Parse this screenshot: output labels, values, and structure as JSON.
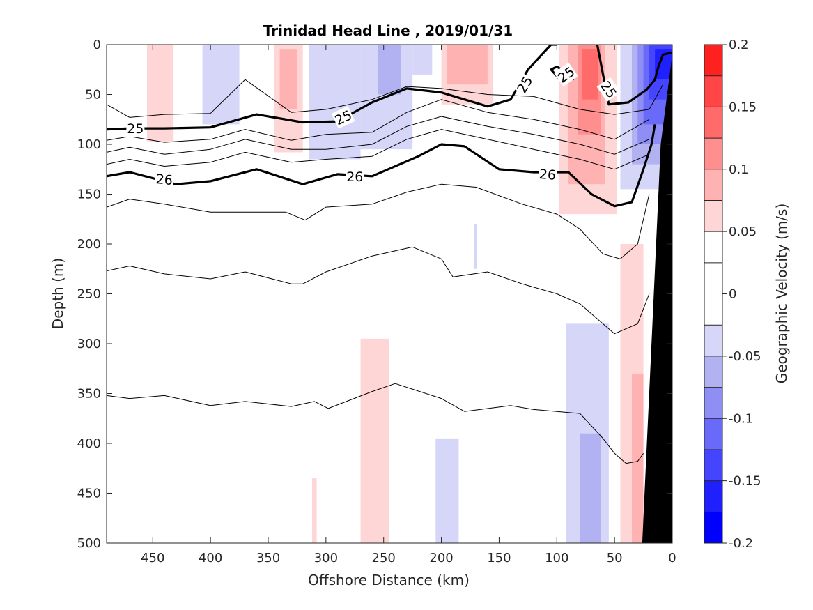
{
  "chart_data": {
    "type": "contour",
    "title": "Trinidad Head Line , 2019/01/31",
    "xlabel": "Offshore Distance (km)",
    "ylabel": "Depth (m)",
    "xlim": [
      490,
      0
    ],
    "ylim": [
      0,
      500
    ],
    "x_reversed": true,
    "y_reversed": true,
    "x_ticks": [
      450,
      400,
      350,
      300,
      250,
      200,
      150,
      100,
      50,
      0
    ],
    "y_ticks": [
      0,
      50,
      100,
      150,
      200,
      250,
      300,
      350,
      400,
      450,
      500
    ],
    "colorbar": {
      "label": "Geographic Velocity (m/s)",
      "range": [
        -0.2,
        0.2
      ],
      "tick_values": [
        0.2,
        0.15,
        0.1,
        0.05,
        0,
        -0.05,
        -0.1,
        -0.15,
        -0.2
      ],
      "tick_labels": [
        "0.2",
        "0.15",
        "0.1",
        "0.05",
        "0",
        "-0.05",
        "-0.1",
        "-0.15",
        "-0.2"
      ],
      "levels": [
        -0.2,
        -0.175,
        -0.15,
        -0.125,
        -0.1,
        -0.075,
        -0.05,
        -0.025,
        0.025,
        0.05,
        0.075,
        0.1,
        0.125,
        0.15,
        0.175,
        0.2
      ],
      "colors": [
        "#0000ff",
        "#2020ff",
        "#4545ff",
        "#6a6afa",
        "#8e8ef5",
        "#b2b2f3",
        "#d6d6f8",
        "#ffffff",
        "#ffffff",
        "#ffd6d6",
        "#ffb2b2",
        "#ff8e8e",
        "#ff6a6a",
        "#ff4545",
        "#ff2020",
        "#ff0000"
      ]
    },
    "velocity_patches": [
      {
        "v": 0.05,
        "x": [
          455,
          432
        ],
        "d": [
          0,
          97
        ]
      },
      {
        "v": -0.05,
        "x": [
          407,
          375
        ],
        "d": [
          0,
          80
        ]
      },
      {
        "v": 0.05,
        "x": [
          345,
          320
        ],
        "d": [
          0,
          108
        ]
      },
      {
        "v": 0.075,
        "x": [
          340,
          325
        ],
        "d": [
          5,
          65
        ]
      },
      {
        "v": -0.05,
        "x": [
          315,
          270
        ],
        "d": [
          0,
          115
        ]
      },
      {
        "v": -0.05,
        "x": [
          270,
          225
        ],
        "d": [
          0,
          105
        ]
      },
      {
        "v": -0.075,
        "x": [
          255,
          235
        ],
        "d": [
          0,
          50
        ]
      },
      {
        "v": -0.05,
        "x": [
          225,
          208
        ],
        "d": [
          0,
          30
        ]
      },
      {
        "v": 0.05,
        "x": [
          200,
          155
        ],
        "d": [
          0,
          60
        ]
      },
      {
        "v": 0.075,
        "x": [
          195,
          160
        ],
        "d": [
          0,
          40
        ]
      },
      {
        "v": 0.05,
        "x": [
          98,
          48
        ],
        "d": [
          0,
          170
        ]
      },
      {
        "v": 0.075,
        "x": [
          90,
          58
        ],
        "d": [
          0,
          140
        ]
      },
      {
        "v": 0.1,
        "x": [
          82,
          62
        ],
        "d": [
          0,
          90
        ]
      },
      {
        "v": 0.125,
        "x": [
          78,
          64
        ],
        "d": [
          5,
          55
        ]
      },
      {
        "v": -0.05,
        "x": [
          45,
          0
        ],
        "d": [
          0,
          145
        ]
      },
      {
        "v": -0.075,
        "x": [
          35,
          0
        ],
        "d": [
          0,
          120
        ]
      },
      {
        "v": -0.1,
        "x": [
          30,
          0
        ],
        "d": [
          0,
          100
        ]
      },
      {
        "v": -0.125,
        "x": [
          25,
          0
        ],
        "d": [
          0,
          80
        ]
      },
      {
        "v": -0.15,
        "x": [
          20,
          0
        ],
        "d": [
          0,
          55
        ]
      },
      {
        "v": -0.175,
        "x": [
          15,
          0
        ],
        "d": [
          5,
          35
        ]
      },
      {
        "v": -0.05,
        "x": [
          92,
          55
        ],
        "d": [
          280,
          500
        ]
      },
      {
        "v": -0.075,
        "x": [
          80,
          62
        ],
        "d": [
          390,
          500
        ]
      },
      {
        "v": -0.05,
        "x": [
          205,
          185
        ],
        "d": [
          395,
          500
        ]
      },
      {
        "v": 0.05,
        "x": [
          270,
          245
        ],
        "d": [
          295,
          500
        ]
      },
      {
        "v": 0.05,
        "x": [
          312,
          308
        ],
        "d": [
          435,
          500
        ]
      },
      {
        "v": -0.05,
        "x": [
          172,
          169
        ],
        "d": [
          180,
          225
        ]
      },
      {
        "v": 0.05,
        "x": [
          45,
          25
        ],
        "d": [
          200,
          500
        ]
      },
      {
        "v": 0.075,
        "x": [
          35,
          25
        ],
        "d": [
          330,
          500
        ]
      }
    ],
    "isopycnals": [
      {
        "label": "25",
        "thick": true,
        "x": [
          490,
          470,
          440,
          400,
          360,
          320,
          290,
          260,
          230,
          200,
          160,
          140,
          125,
          105,
          100
        ],
        "d": [
          85,
          84,
          84,
          83,
          70,
          78,
          77,
          58,
          44,
          48,
          62,
          55,
          25,
          0,
          0
        ]
      },
      {
        "label": "25",
        "thick": true,
        "x": [
          95,
          105,
          100,
          92,
          85
        ],
        "d": [
          38,
          25,
          22,
          28,
          35
        ]
      },
      {
        "label": "25",
        "thick": true,
        "x": [
          65,
          60,
          55,
          38,
          22,
          15,
          12,
          8,
          0
        ],
        "d": [
          0,
          30,
          60,
          58,
          45,
          35,
          22,
          10,
          8
        ]
      },
      {
        "label": "26",
        "thick": true,
        "x": [
          490,
          470,
          430,
          400,
          360,
          320,
          290,
          260,
          220,
          200,
          180,
          150,
          120,
          90,
          70,
          50,
          35,
          25,
          18,
          15
        ],
        "d": [
          132,
          128,
          140,
          137,
          125,
          140,
          130,
          132,
          112,
          100,
          102,
          125,
          128,
          128,
          150,
          162,
          158,
          125,
          100,
          80
        ]
      },
      {
        "label": "",
        "thick": false,
        "x": [
          490,
          470,
          440,
          400,
          370,
          330,
          300,
          260,
          230,
          200,
          160,
          120,
          80,
          50,
          20,
          8
        ],
        "d": [
          60,
          73,
          70,
          69,
          35,
          68,
          65,
          55,
          42,
          44,
          50,
          52,
          65,
          70,
          65,
          40
        ]
      },
      {
        "label": "",
        "thick": false,
        "x": [
          490,
          470,
          440,
          400,
          370,
          330,
          300,
          260,
          230,
          200,
          160,
          120,
          80,
          50,
          20
        ],
        "d": [
          96,
          92,
          98,
          95,
          85,
          96,
          90,
          88,
          68,
          55,
          68,
          75,
          85,
          95,
          75
        ]
      },
      {
        "label": "",
        "thick": false,
        "x": [
          490,
          470,
          440,
          400,
          370,
          330,
          300,
          260,
          230,
          200,
          160,
          120,
          80,
          50,
          20
        ],
        "d": [
          108,
          103,
          110,
          105,
          95,
          105,
          105,
          100,
          82,
          72,
          82,
          90,
          100,
          110,
          95
        ]
      },
      {
        "label": "",
        "thick": false,
        "x": [
          490,
          470,
          440,
          400,
          370,
          330,
          300,
          260,
          230,
          200,
          160,
          120,
          80,
          50,
          20
        ],
        "d": [
          120,
          115,
          122,
          118,
          108,
          118,
          115,
          112,
          95,
          85,
          95,
          105,
          115,
          125,
          110
        ]
      },
      {
        "label": "",
        "thick": false,
        "x": [
          490,
          470,
          440,
          400,
          370,
          335,
          318,
          300,
          260,
          230,
          200,
          170,
          130,
          100,
          80,
          60,
          45,
          30,
          20
        ],
        "d": [
          163,
          155,
          160,
          168,
          168,
          168,
          176,
          163,
          160,
          148,
          140,
          143,
          160,
          170,
          185,
          210,
          215,
          200,
          150
        ]
      },
      {
        "label": "",
        "thick": false,
        "x": [
          490,
          470,
          440,
          400,
          370,
          330,
          320,
          300,
          260,
          225,
          200,
          190,
          160,
          130,
          100,
          80,
          50,
          30,
          20
        ],
        "d": [
          227,
          222,
          230,
          235,
          228,
          240,
          240,
          228,
          212,
          203,
          215,
          233,
          228,
          240,
          250,
          260,
          290,
          280,
          250
        ]
      },
      {
        "label": "",
        "thick": false,
        "x": [
          490,
          470,
          440,
          400,
          370,
          330,
          310,
          298,
          260,
          240,
          200,
          180,
          140,
          120,
          80,
          60,
          50,
          40,
          30,
          25
        ],
        "d": [
          352,
          355,
          352,
          362,
          358,
          363,
          358,
          365,
          348,
          340,
          355,
          368,
          362,
          366,
          370,
          395,
          410,
          420,
          418,
          410
        ]
      }
    ],
    "contour_labels": [
      {
        "text": "25",
        "x": 465,
        "d": 84,
        "angle": 0
      },
      {
        "text": "25",
        "x": 285,
        "d": 73,
        "angle": -25
      },
      {
        "text": "25",
        "x": 128,
        "d": 40,
        "angle": -60
      },
      {
        "text": "25",
        "x": 92,
        "d": 30,
        "angle": -35
      },
      {
        "text": "25",
        "x": 55,
        "d": 45,
        "angle": 55
      },
      {
        "text": "26",
        "x": 440,
        "d": 135,
        "angle": 5
      },
      {
        "text": "26",
        "x": 275,
        "d": 132,
        "angle": 0
      },
      {
        "text": "26",
        "x": 108,
        "d": 130,
        "angle": 5
      }
    ],
    "bathymetry": {
      "x": [
        26,
        0,
        0,
        10,
        18
      ],
      "d": [
        500,
        500,
        10,
        100,
        300
      ],
      "color": "#000000"
    }
  }
}
